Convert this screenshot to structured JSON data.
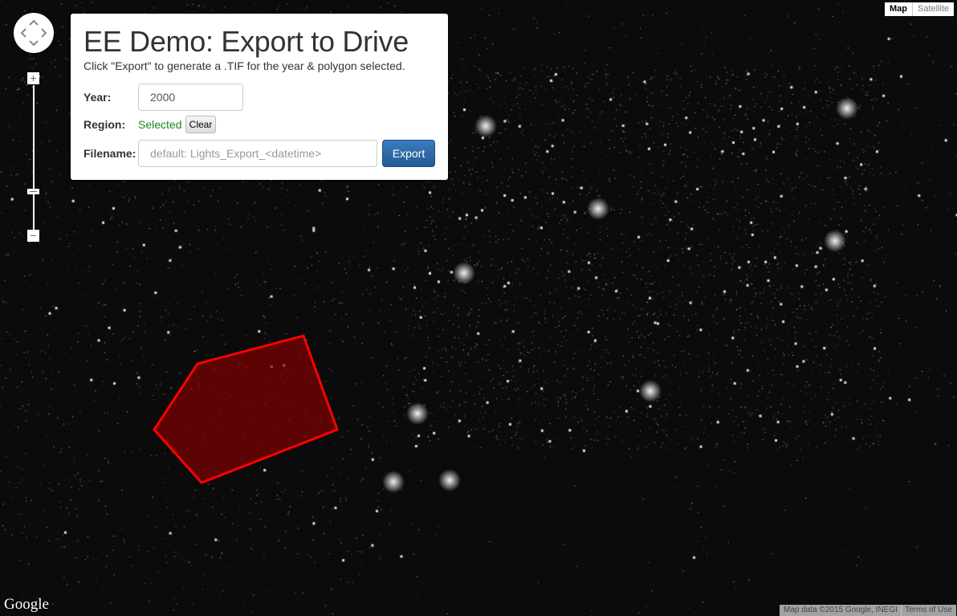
{
  "panel": {
    "title": "EE Demo: Export to Drive",
    "subtitle": "Click \"Export\" to generate a .TIF for the year & polygon selected.",
    "year_label": "Year:",
    "year_value": "2000",
    "region_label": "Region:",
    "region_status": "Selected",
    "clear_label": "Clear",
    "filename_label": "Filename:",
    "filename_placeholder": "default: Lights_Export_<datetime>",
    "export_label": "Export"
  },
  "map_type": {
    "map": "Map",
    "satellite": "Satellite",
    "active": "Map"
  },
  "zoom": {
    "in": "+",
    "out": "−"
  },
  "attribution": {
    "data": "Map data ©2015 Google, INEGI",
    "terms": "Terms of Use"
  },
  "logo": "Google",
  "colors": {
    "polygon_stroke": "#ff0000",
    "polygon_fill": "#8b0000",
    "status": "#1a8a1a",
    "export_button": "#2f6ea8"
  }
}
